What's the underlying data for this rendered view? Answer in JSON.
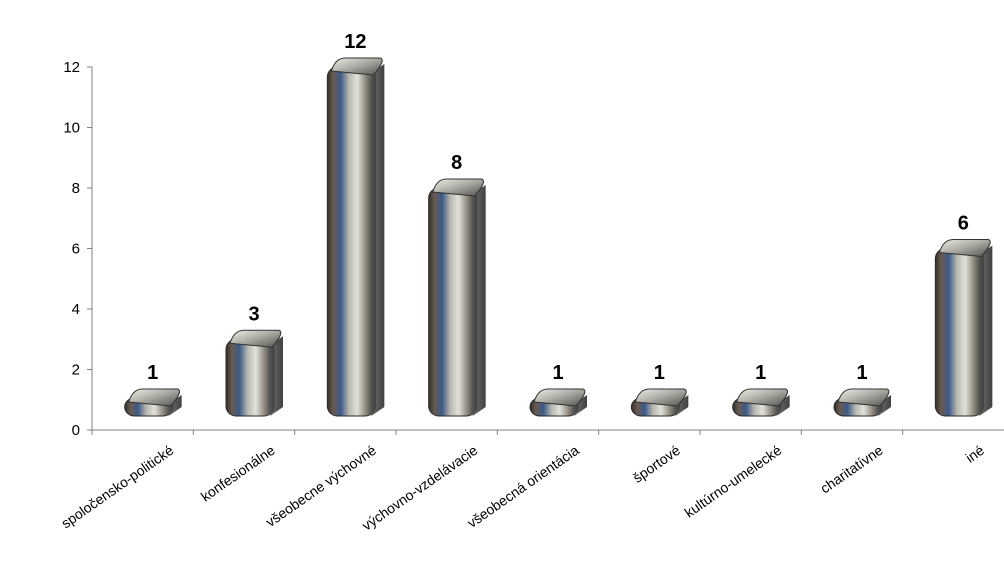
{
  "chart_data": {
    "type": "bar",
    "categories": [
      "spoločensko-politické",
      "konfesionálne",
      "všeobecne výchovné",
      "výchovno-vzdelávacie",
      "všeobecná orientácia",
      "športové",
      "kultúrno-umelecké",
      "charitatívne",
      "iné"
    ],
    "values": [
      1,
      3,
      12,
      8,
      1,
      1,
      1,
      1,
      6
    ],
    "data_labels": [
      "1",
      "3",
      "12",
      "8",
      "1",
      "1",
      "1",
      "1",
      "6"
    ],
    "yticks": [
      "0",
      "2",
      "4",
      "6",
      "8",
      "10",
      "12"
    ],
    "ylim": [
      0,
      12
    ],
    "grid": false,
    "legend": "none",
    "colors": {
      "bar_dark": "#3b3b3b",
      "bar_mid": "#9a9a94",
      "bar_light": "#d8d8d2",
      "bar_accent_blue": "#3c5a8a",
      "bar_accent_skin": "#a07a5c",
      "axis": "#808080"
    }
  }
}
